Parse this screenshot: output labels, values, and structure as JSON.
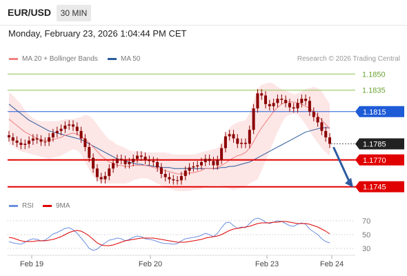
{
  "header": {
    "pair": "EUR/USD",
    "timeframe": "30 MIN",
    "timestamp": "Monday, February 23, 2026 1:04:44 PM CET"
  },
  "legend": {
    "ma20_label": "MA 20 + Bollinger Bands",
    "ma50_label": "MA 50",
    "credit": "Research © 2026 Trading Central",
    "rsi_label": "RSI",
    "rsi_ma_label": "9MA"
  },
  "colors": {
    "ma20": "#f08080",
    "ma50": "#2a5a9a",
    "bollinger_fill": "#fde2e2",
    "candle": "#8b0000",
    "support": "#e00000",
    "resistance_blue": "#1e5bd6",
    "resistance_green": "#8cc34a",
    "current": "#222222",
    "arrow": "#2c5aa0",
    "rsi": "#6a8fe0",
    "rsi_ma": "#e00000"
  },
  "chart_data": [
    {
      "type": "line",
      "subtype": "candlestick",
      "title": "EUR/USD",
      "xlabel": "",
      "ylabel": "",
      "x_ticks": [
        "Feb 19",
        "Feb 20",
        "Feb 23",
        "Feb 24"
      ],
      "ylim": [
        1.1739,
        1.1856
      ],
      "levels": [
        {
          "label": "1.1850",
          "value": 1.185,
          "kind": "resistance"
        },
        {
          "label": "1.1835",
          "value": 1.1835,
          "kind": "resistance"
        },
        {
          "label": "1.1815",
          "value": 1.1815,
          "kind": "pivot"
        },
        {
          "label": "1.1785",
          "value": 1.1785,
          "kind": "current"
        },
        {
          "label": "1.1770",
          "value": 1.177,
          "kind": "support"
        },
        {
          "label": "1.1745",
          "value": 1.1745,
          "kind": "support"
        }
      ],
      "price_series": {
        "name": "EUR/USD",
        "values": [
          1.1791,
          1.1788,
          1.1786,
          1.1784,
          1.1785,
          1.1788,
          1.179,
          1.1789,
          1.1787,
          1.1787,
          1.1791,
          1.1795,
          1.1797,
          1.1799,
          1.1802,
          1.1803,
          1.1801,
          1.1797,
          1.179,
          1.1782,
          1.1772,
          1.1762,
          1.1754,
          1.1752,
          1.1755,
          1.1762,
          1.1767,
          1.1771,
          1.177,
          1.1766,
          1.1768,
          1.1771,
          1.1774,
          1.1773,
          1.177,
          1.1769,
          1.1768,
          1.1763,
          1.1757,
          1.1754,
          1.1752,
          1.1751,
          1.1751,
          1.1755,
          1.176,
          1.1763,
          1.1764,
          1.1765,
          1.1768,
          1.1771,
          1.1769,
          1.1765,
          1.177,
          1.1781,
          1.1792,
          1.1794,
          1.179,
          1.1785,
          1.1786,
          1.1785,
          1.1798,
          1.1818,
          1.1832,
          1.183,
          1.1822,
          1.182,
          1.1823,
          1.1827,
          1.1826,
          1.1823,
          1.1819,
          1.1818,
          1.1823,
          1.1827,
          1.1825,
          1.1815,
          1.181,
          1.1805,
          1.1797,
          1.1791,
          1.1785
        ]
      },
      "ma20": {
        "name": "MA 20",
        "values": [
          1.1808,
          1.1805,
          1.1802,
          1.1799,
          1.1796,
          1.1794,
          1.1792,
          1.179,
          1.1789,
          1.1788,
          1.1788,
          1.1789,
          1.179,
          1.1791,
          1.1793,
          1.1794,
          1.1795,
          1.1794,
          1.1792,
          1.1789,
          1.1786,
          1.1782,
          1.1778,
          1.1774,
          1.1771,
          1.1768,
          1.1767,
          1.1765,
          1.1765,
          1.1764,
          1.1764,
          1.1765,
          1.1765,
          1.1765,
          1.1765,
          1.1764,
          1.1763,
          1.1762,
          1.1761,
          1.176,
          1.1759,
          1.1758,
          1.1757,
          1.1757,
          1.1757,
          1.1758,
          1.1758,
          1.1759,
          1.176,
          1.1762,
          1.1762,
          1.1762,
          1.1763,
          1.1765,
          1.1767,
          1.177,
          1.1772,
          1.1774,
          1.1775,
          1.1777,
          1.1781,
          1.1787,
          1.1794,
          1.18,
          1.1805,
          1.181,
          1.1815,
          1.1819,
          1.1822,
          1.1824,
          1.1824,
          1.1824,
          1.1823,
          1.1822,
          1.182,
          1.1818,
          1.1815,
          1.1811,
          1.1807,
          1.1803,
          1.1799
        ]
      },
      "ma50": {
        "name": "MA 50",
        "values": [
          1.1822,
          1.1819,
          1.1816,
          1.1813,
          1.181,
          1.1807,
          1.1805,
          1.1803,
          1.1801,
          1.1799,
          1.1797,
          1.1796,
          1.1795,
          1.1794,
          1.1793,
          1.1792,
          1.1791,
          1.179,
          1.1789,
          1.1787,
          1.1785,
          1.1783,
          1.1781,
          1.1779,
          1.1777,
          1.1775,
          1.1773,
          1.1771,
          1.177,
          1.1769,
          1.1768,
          1.1767,
          1.1766,
          1.1766,
          1.1765,
          1.1765,
          1.1764,
          1.1764,
          1.1763,
          1.1763,
          1.1763,
          1.1762,
          1.1762,
          1.1762,
          1.1762,
          1.1762,
          1.1762,
          1.1762,
          1.1762,
          1.1762,
          1.1762,
          1.1762,
          1.1762,
          1.1763,
          1.1763,
          1.1764,
          1.1764,
          1.1765,
          1.1766,
          1.1767,
          1.1768,
          1.177,
          1.1772,
          1.1774,
          1.1776,
          1.1778,
          1.178,
          1.1782,
          1.1784,
          1.1786,
          1.1788,
          1.179,
          1.1792,
          1.1794,
          1.1796,
          1.1797,
          1.1798,
          1.1799,
          1.18,
          1.18,
          1.18
        ]
      },
      "bollinger_upper": [
        1.1833,
        1.183,
        1.1826,
        1.1822,
        1.1816,
        1.1812,
        1.1809,
        1.1807,
        1.1806,
        1.1806,
        1.1806,
        1.1806,
        1.1806,
        1.1807,
        1.1808,
        1.1808,
        1.1808,
        1.1809,
        1.181,
        1.1812,
        1.1811,
        1.1808,
        1.1803,
        1.1798,
        1.1793,
        1.1789,
        1.1787,
        1.1784,
        1.1783,
        1.1781,
        1.1779,
        1.1778,
        1.1778,
        1.1778,
        1.1777,
        1.1777,
        1.1777,
        1.1777,
        1.1777,
        1.1777,
        1.1776,
        1.1775,
        1.1775,
        1.1775,
        1.1775,
        1.1775,
        1.1775,
        1.1776,
        1.1777,
        1.1778,
        1.1779,
        1.178,
        1.1781,
        1.1785,
        1.1793,
        1.18,
        1.1803,
        1.1805,
        1.1806,
        1.1807,
        1.1814,
        1.1825,
        1.1836,
        1.184,
        1.1841,
        1.1842,
        1.1841,
        1.1838,
        1.1836,
        1.1835,
        1.1833,
        1.1831,
        1.1832,
        1.1834,
        1.1836,
        1.1837,
        1.1838,
        1.1837,
        1.1834,
        1.1828,
        1.1822
      ],
      "bollinger_lower": [
        1.1785,
        1.1783,
        1.178,
        1.1778,
        1.1777,
        1.1776,
        1.1775,
        1.1774,
        1.1773,
        1.1772,
        1.1771,
        1.1772,
        1.1773,
        1.1774,
        1.1776,
        1.1778,
        1.178,
        1.1779,
        1.1775,
        1.1768,
        1.1761,
        1.1755,
        1.1751,
        1.1749,
        1.1748,
        1.1748,
        1.1748,
        1.1748,
        1.1748,
        1.1748,
        1.1749,
        1.1751,
        1.1752,
        1.1753,
        1.1753,
        1.1752,
        1.175,
        1.1748,
        1.1746,
        1.1744,
        1.1743,
        1.1742,
        1.1741,
        1.1741,
        1.1741,
        1.1741,
        1.1742,
        1.1742,
        1.1743,
        1.1745,
        1.1746,
        1.1746,
        1.1746,
        1.1746,
        1.1745,
        1.1743,
        1.1742,
        1.1743,
        1.1744,
        1.1745,
        1.1748,
        1.175,
        1.1752,
        1.176,
        1.1769,
        1.1778,
        1.1787,
        1.1796,
        1.1804,
        1.181,
        1.1812,
        1.1813,
        1.1812,
        1.1808,
        1.1803,
        1.1797,
        1.1791,
        1.1786,
        1.1781,
        1.1777,
        1.1774
      ]
    },
    {
      "type": "line",
      "title": "RSI",
      "xlabel": "",
      "ylabel": "",
      "y_ticks": [
        70,
        50,
        30
      ],
      "ylim": [
        22,
        78
      ],
      "series": [
        {
          "name": "RSI",
          "values": [
            40,
            38,
            37,
            36,
            39,
            42,
            44,
            43,
            41,
            42,
            46,
            51,
            53,
            56,
            59,
            60,
            57,
            52,
            45,
            38,
            30,
            27,
            29,
            34,
            38,
            42,
            43,
            45,
            44,
            41,
            43,
            46,
            48,
            47,
            44,
            43,
            42,
            40,
            38,
            37,
            37,
            36,
            37,
            41,
            44,
            45,
            46,
            47,
            49,
            52,
            50,
            47,
            52,
            60,
            67,
            68,
            63,
            59,
            61,
            60,
            66,
            72,
            74,
            72,
            68,
            66,
            68,
            70,
            69,
            66,
            63,
            62,
            65,
            67,
            65,
            58,
            54,
            50,
            44,
            40,
            38
          ]
        },
        {
          "name": "9MA",
          "values": [
            46,
            45,
            43,
            41,
            40,
            40,
            40,
            41,
            41,
            41,
            42,
            43,
            45,
            47,
            50,
            53,
            55,
            56,
            55,
            52,
            48,
            43,
            38,
            35,
            34,
            34,
            35,
            37,
            39,
            41,
            42,
            43,
            44,
            45,
            45,
            45,
            45,
            44,
            43,
            42,
            41,
            40,
            39,
            39,
            39,
            40,
            41,
            42,
            43,
            45,
            46,
            47,
            48,
            50,
            53,
            56,
            58,
            59,
            60,
            61,
            62,
            64,
            66,
            67,
            67,
            67,
            68,
            68,
            69,
            69,
            68,
            67,
            66,
            66,
            66,
            65,
            63,
            61,
            58,
            55,
            51
          ]
        }
      ]
    }
  ]
}
